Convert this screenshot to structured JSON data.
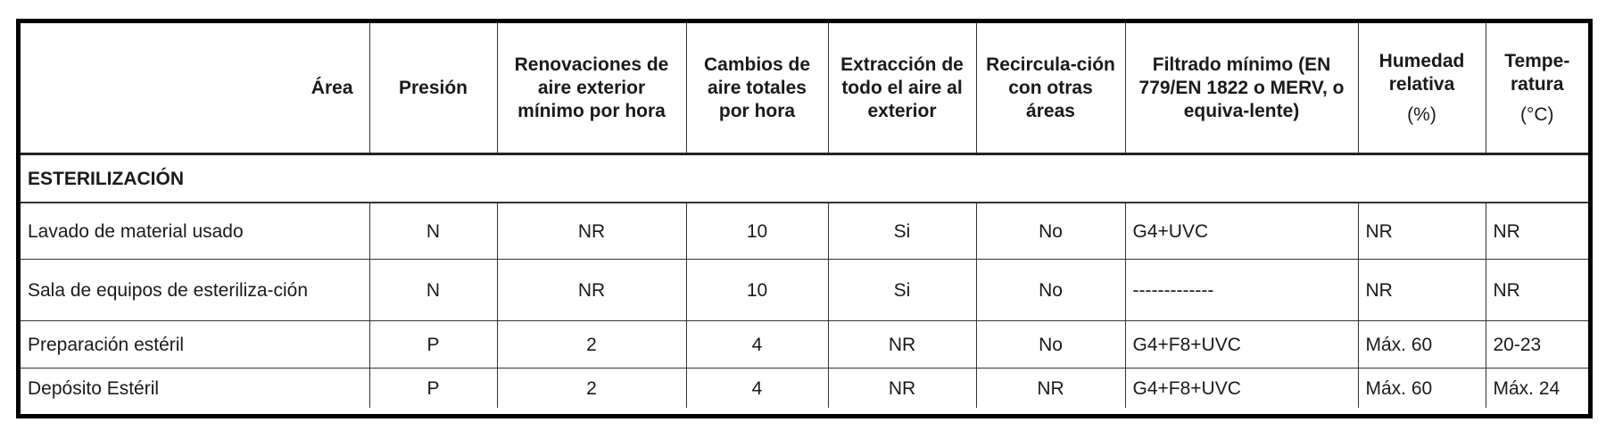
{
  "table": {
    "headers": [
      {
        "label": "Área"
      },
      {
        "label": "Presión"
      },
      {
        "label": "Renovaciones de aire exterior mínimo por hora"
      },
      {
        "label": "Cambios de aire totales por hora"
      },
      {
        "label": "Extracción de todo el aire al exterior"
      },
      {
        "label": "Recircula-ción con otras áreas"
      },
      {
        "label": "Filtrado mínimo (EN 779/EN 1822 o MERV, o equiva-lente)"
      },
      {
        "label": "Humedad relativa",
        "unit": "(%)"
      },
      {
        "label": "Tempe-ratura",
        "unit": "(°C)"
      }
    ],
    "section": "ESTERILIZACIÓN",
    "rows": [
      [
        "Lavado de material usado",
        "N",
        "NR",
        "10",
        "Si",
        "No",
        "G4+UVC",
        "NR",
        "NR"
      ],
      [
        "Sala de equipos de esteriliza-ción",
        "N",
        "NR",
        "10",
        "Si",
        "No",
        "-------------",
        "NR",
        "NR"
      ],
      [
        "Preparación estéril",
        "P",
        "2",
        "4",
        "NR",
        "No",
        "G4+F8+UVC",
        "Máx. 60",
        "20-23"
      ],
      [
        "Depósito Estéril",
        "P",
        "2",
        "4",
        "NR",
        "NR",
        "G4+F8+UVC",
        "Máx. 60",
        "Máx. 24"
      ]
    ]
  }
}
